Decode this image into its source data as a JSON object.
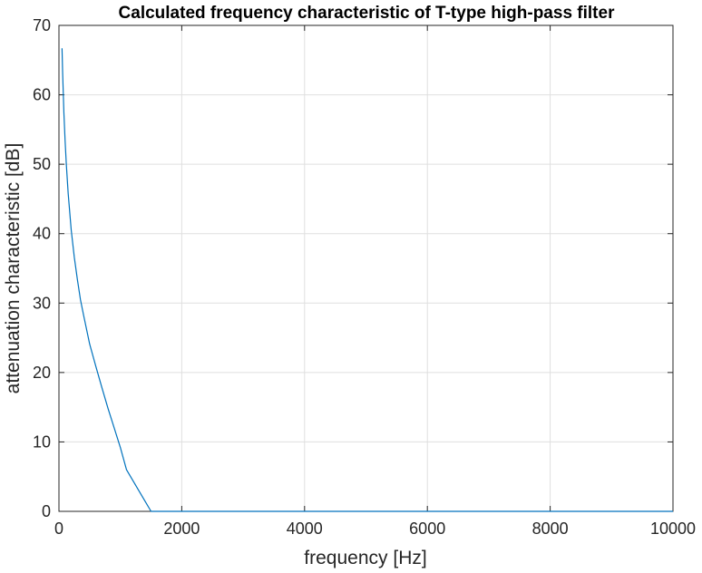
{
  "chart_data": {
    "type": "line",
    "title": "Calculated frequency characteristic of T-type high-pass filter",
    "xlabel": "frequency [Hz]",
    "ylabel": "attenuation characteristic [dB]",
    "xlim": [
      0,
      10000
    ],
    "ylim": [
      0,
      70
    ],
    "xticks": [
      0,
      2000,
      4000,
      6000,
      8000,
      10000
    ],
    "xtick_labels": [
      "0",
      "2000",
      "4000",
      "6000",
      "8000",
      "10000"
    ],
    "yticks": [
      0,
      10,
      20,
      30,
      40,
      50,
      60,
      70
    ],
    "ytick_labels": [
      "0",
      "10",
      "20",
      "30",
      "40",
      "50",
      "60",
      "70"
    ],
    "grid": true,
    "line_color": "#0072BD",
    "series": [
      {
        "x": [
          50,
          60,
          80,
          100,
          120,
          150,
          200,
          250,
          300,
          350,
          400,
          500,
          600,
          700,
          800,
          900,
          1000,
          1100,
          1200,
          1300,
          1400,
          1500,
          2000,
          3000,
          4000,
          5000,
          6000,
          7000,
          8000,
          9000,
          10000
        ],
        "y": [
          66.7,
          63.2,
          57.5,
          53.4,
          50.0,
          45.8,
          40.5,
          36.6,
          33.4,
          30.5,
          28.3,
          24.1,
          20.9,
          17.8,
          14.8,
          12.0,
          9.2,
          6.0,
          4.5,
          3.0,
          1.5,
          0,
          0,
          0,
          0,
          0,
          0,
          0,
          0,
          0,
          0
        ]
      }
    ]
  }
}
